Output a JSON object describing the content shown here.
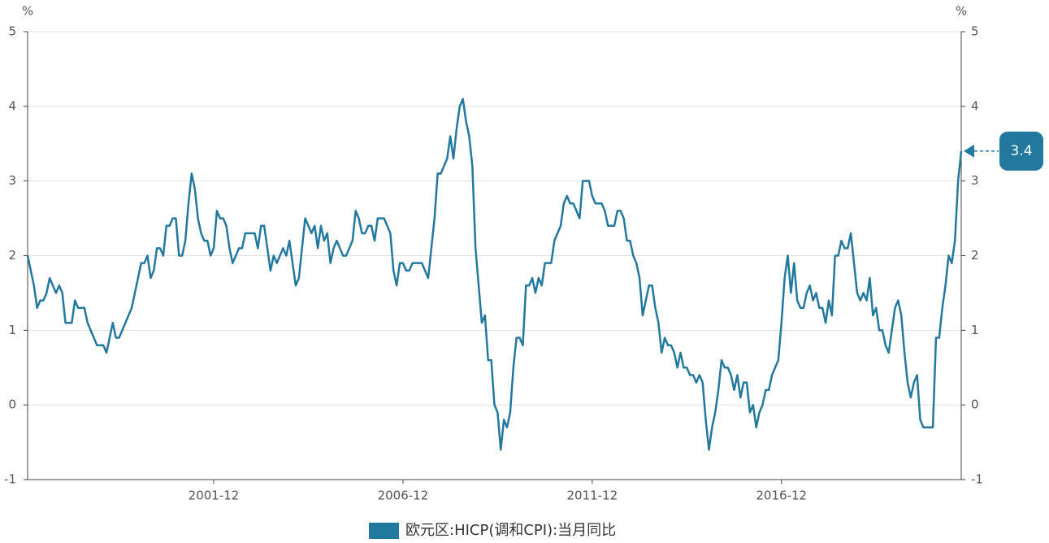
{
  "chart_data": {
    "type": "line",
    "y_label": "%",
    "y2_label": "%",
    "categories": [
      null,
      null,
      null,
      null,
      null,
      null,
      null,
      null,
      null,
      null,
      null,
      null,
      null,
      null,
      null,
      null,
      null,
      null,
      null,
      null,
      null,
      null,
      null,
      null,
      null,
      null,
      null,
      null,
      null,
      null,
      null,
      null,
      null,
      null,
      null,
      null,
      null,
      null,
      null,
      null,
      null,
      null,
      null,
      null,
      null,
      null,
      null,
      null,
      null,
      null,
      null,
      null,
      null,
      null,
      null,
      null,
      null,
      null,
      null,
      "2001-12",
      null,
      null,
      null,
      null,
      null,
      null,
      null,
      null,
      null,
      null,
      null,
      null,
      null,
      null,
      null,
      null,
      null,
      null,
      null,
      null,
      null,
      null,
      null,
      null,
      null,
      null,
      null,
      null,
      null,
      null,
      null,
      null,
      null,
      null,
      null,
      null,
      null,
      null,
      null,
      null,
      null,
      null,
      null,
      null,
      null,
      null,
      null,
      null,
      null,
      null,
      null,
      null,
      null,
      null,
      null,
      null,
      null,
      null,
      null,
      "2006-12",
      null,
      null,
      null,
      null,
      null,
      null,
      null,
      null,
      null,
      null,
      null,
      null,
      null,
      null,
      null,
      null,
      null,
      null,
      null,
      null,
      null,
      null,
      null,
      null,
      null,
      null,
      null,
      null,
      null,
      null,
      null,
      null,
      null,
      null,
      null,
      null,
      null,
      null,
      null,
      null,
      null,
      null,
      null,
      null,
      null,
      null,
      null,
      null,
      null,
      null,
      null,
      null,
      null,
      null,
      null,
      null,
      null,
      null,
      null,
      "2011-12",
      null,
      null,
      null,
      null,
      null,
      null,
      null,
      null,
      null,
      null,
      null,
      null,
      null,
      null,
      null,
      null,
      null,
      null,
      null,
      null,
      null,
      null,
      null,
      null,
      null,
      null,
      null,
      null,
      null,
      null,
      null,
      null,
      null,
      null,
      null,
      null,
      null,
      null,
      null,
      null,
      null,
      null,
      null,
      null,
      null,
      null,
      null,
      null,
      null,
      null,
      null,
      null,
      null,
      null,
      null,
      null,
      null,
      null,
      null,
      "2016-12",
      null,
      null,
      null,
      null,
      null,
      null,
      null,
      null,
      null,
      null,
      null,
      null,
      null,
      null,
      null,
      null,
      null,
      null,
      null,
      null,
      null,
      null,
      null,
      null,
      null,
      null,
      null,
      null,
      null,
      null,
      null,
      null,
      null,
      null,
      null,
      null,
      null,
      null,
      null,
      null,
      null,
      null,
      null,
      null,
      null,
      null,
      null,
      null,
      null,
      null,
      null,
      null,
      null,
      null,
      null,
      null,
      null
    ],
    "series": [
      {
        "name": "欧元区:HICP(调和CPI):当月同比",
        "color": "#23789e",
        "values": [
          2.0,
          1.8,
          1.6,
          1.3,
          1.4,
          1.4,
          1.5,
          1.7,
          1.6,
          1.5,
          1.6,
          1.5,
          1.1,
          1.1,
          1.1,
          1.4,
          1.3,
          1.3,
          1.3,
          1.1,
          1.0,
          0.9,
          0.8,
          0.8,
          0.8,
          0.7,
          0.9,
          1.1,
          0.9,
          0.9,
          1.0,
          1.1,
          1.2,
          1.3,
          1.5,
          1.7,
          1.9,
          1.9,
          2.0,
          1.7,
          1.8,
          2.1,
          2.1,
          2.0,
          2.4,
          2.4,
          2.5,
          2.5,
          2.0,
          2.0,
          2.2,
          2.7,
          3.1,
          2.9,
          2.5,
          2.3,
          2.2,
          2.2,
          2.0,
          2.1,
          2.6,
          2.5,
          2.5,
          2.4,
          2.1,
          1.9,
          2.0,
          2.1,
          2.1,
          2.3,
          2.3,
          2.3,
          2.3,
          2.1,
          2.4,
          2.4,
          2.1,
          1.8,
          2.0,
          1.9,
          2.0,
          2.1,
          2.0,
          2.2,
          1.9,
          1.6,
          1.7,
          2.1,
          2.5,
          2.4,
          2.3,
          2.4,
          2.1,
          2.4,
          2.2,
          2.3,
          1.9,
          2.1,
          2.2,
          2.1,
          2.0,
          2.0,
          2.1,
          2.2,
          2.6,
          2.5,
          2.3,
          2.3,
          2.4,
          2.4,
          2.2,
          2.5,
          2.5,
          2.5,
          2.4,
          2.3,
          1.8,
          1.6,
          1.9,
          1.9,
          1.8,
          1.8,
          1.9,
          1.9,
          1.9,
          1.9,
          1.8,
          1.7,
          2.1,
          2.5,
          3.1,
          3.1,
          3.2,
          3.3,
          3.6,
          3.3,
          3.7,
          4.0,
          4.1,
          3.8,
          3.6,
          3.2,
          2.1,
          1.6,
          1.1,
          1.2,
          0.6,
          0.6,
          0.0,
          -0.1,
          -0.6,
          -0.2,
          -0.3,
          -0.1,
          0.5,
          0.9,
          0.9,
          0.8,
          1.6,
          1.6,
          1.7,
          1.5,
          1.7,
          1.6,
          1.9,
          1.9,
          1.9,
          2.2,
          2.3,
          2.4,
          2.7,
          2.8,
          2.7,
          2.7,
          2.6,
          2.5,
          3.0,
          3.0,
          3.0,
          2.8,
          2.7,
          2.7,
          2.7,
          2.6,
          2.4,
          2.4,
          2.4,
          2.6,
          2.6,
          2.5,
          2.2,
          2.2,
          2.0,
          1.9,
          1.7,
          1.2,
          1.4,
          1.6,
          1.6,
          1.3,
          1.1,
          0.7,
          0.9,
          0.8,
          0.8,
          0.7,
          0.5,
          0.7,
          0.5,
          0.5,
          0.4,
          0.4,
          0.3,
          0.4,
          0.3,
          -0.2,
          -0.6,
          -0.3,
          -0.1,
          0.2,
          0.6,
          0.5,
          0.5,
          0.4,
          0.2,
          0.4,
          0.1,
          0.3,
          0.3,
          -0.1,
          0.0,
          -0.3,
          -0.1,
          0.0,
          0.2,
          0.2,
          0.4,
          0.5,
          0.6,
          1.1,
          1.7,
          2.0,
          1.5,
          1.9,
          1.4,
          1.3,
          1.3,
          1.5,
          1.6,
          1.4,
          1.5,
          1.3,
          1.3,
          1.1,
          1.4,
          1.2,
          2.0,
          2.0,
          2.2,
          2.1,
          2.1,
          2.3,
          1.9,
          1.5,
          1.4,
          1.5,
          1.4,
          1.7,
          1.2,
          1.3,
          1.0,
          1.0,
          0.8,
          0.7,
          1.0,
          1.3,
          1.4,
          1.2,
          0.7,
          0.3,
          0.1,
          0.3,
          0.4,
          -0.2,
          -0.3,
          -0.3,
          -0.3,
          -0.3,
          0.9,
          0.9,
          1.3,
          1.6,
          2.0,
          1.9,
          2.2,
          3.0,
          3.4
        ]
      }
    ],
    "ylim": [
      -1,
      5
    ],
    "yticks": [
      -1,
      0,
      1,
      2,
      3,
      4,
      5
    ],
    "y2lim": [
      -1,
      5
    ],
    "y2ticks": [
      -1,
      0,
      1,
      2,
      3,
      4,
      5
    ],
    "grid": true,
    "legend": "bottom",
    "last_value_label": true
  }
}
